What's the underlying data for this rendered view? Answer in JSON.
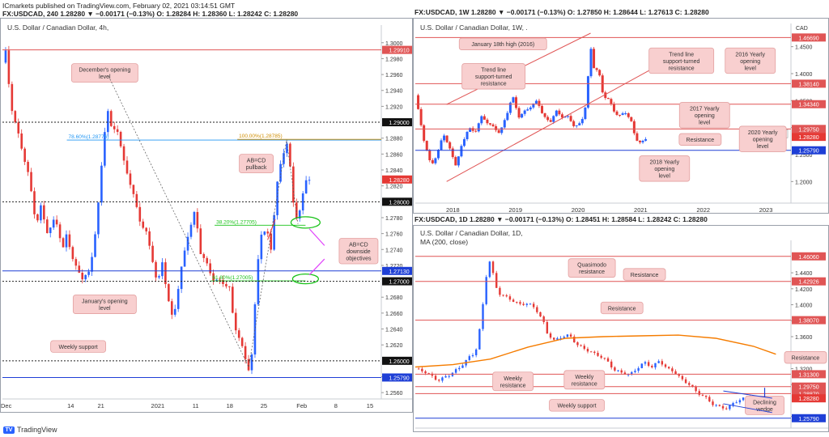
{
  "top": {
    "line1": "ICmarkets published on TradingView.com, February 02, 2021 03:14:51 GMT",
    "line2": "FX:USDCAD, 240  1.28280  ▼  −0.00171 (−0.13%)  O: 1.28284  H: 1.28360  L: 1.28242  C: 1.28280"
  },
  "footer": {
    "logo": "TradingView"
  },
  "colors": {
    "up": "#2962ff",
    "down": "#e53935",
    "resistance": "#e05555",
    "support": "#1e3fd6",
    "label_bg": "#f8cfcf",
    "label_border": "#e3a0a0",
    "ma": "#f57c00",
    "fib_blue": "#2196f3",
    "fib_orange": "#d18e00",
    "green": "#19c219",
    "magenta": "#e040fb"
  },
  "chart_data": [
    {
      "id": "h4",
      "type": "candlestick",
      "header": "FX:USDCAD, 240  1.28280 ▼ −0.00171 (−0.13%)  O: 1.28284  H: 1.28360  L: 1.28242  C: 1.28280",
      "title": "U.S. Dollar / Canadian Dollar, 4h,",
      "ylim": [
        1.2552,
        1.3012
      ],
      "xlim": [
        0,
        100
      ],
      "y_ticks": [
        "1.3000",
        "1.2980",
        "1.2960",
        "1.2940",
        "1.2920",
        "1.2880",
        "1.2860",
        "1.2840",
        "1.2820",
        "1.2780",
        "1.2760",
        "1.2740",
        "1.2720",
        "1.2680",
        "1.2660",
        "1.2640",
        "1.2620",
        "1.2580",
        "1.2560"
      ],
      "x_ticks": [
        {
          "x": 1,
          "label": "Dec"
        },
        {
          "x": 18,
          "label": "14"
        },
        {
          "x": 26,
          "label": "21"
        },
        {
          "x": 41,
          "label": "2021"
        },
        {
          "x": 51,
          "label": "11"
        },
        {
          "x": 60,
          "label": "18"
        },
        {
          "x": 69,
          "label": "25"
        },
        {
          "x": 79,
          "label": "Feb"
        },
        {
          "x": 88,
          "label": "8"
        },
        {
          "x": 97,
          "label": "15"
        }
      ],
      "price_path": [
        [
          0,
          1.2975
        ],
        [
          1,
          1.299
        ],
        [
          2,
          1.293
        ],
        [
          3,
          1.2905
        ],
        [
          5,
          1.287
        ],
        [
          7,
          1.283
        ],
        [
          9,
          1.277
        ],
        [
          10,
          1.2795
        ],
        [
          12,
          1.276
        ],
        [
          14,
          1.278
        ],
        [
          16,
          1.274
        ],
        [
          17,
          1.276
        ],
        [
          19,
          1.272
        ],
        [
          21,
          1.2705
        ],
        [
          23,
          1.271
        ],
        [
          25,
          1.278
        ],
        [
          27,
          1.289
        ],
        [
          28,
          1.292
        ],
        [
          29,
          1.288
        ],
        [
          30,
          1.29
        ],
        [
          32,
          1.285
        ],
        [
          34,
          1.282
        ],
        [
          36,
          1.278
        ],
        [
          38,
          1.276
        ],
        [
          40,
          1.272
        ],
        [
          41,
          1.269
        ],
        [
          42,
          1.273
        ],
        [
          44,
          1.267
        ],
        [
          45,
          1.265
        ],
        [
          47,
          1.271
        ],
        [
          49,
          1.276
        ],
        [
          51,
          1.279
        ],
        [
          52,
          1.274
        ],
        [
          54,
          1.272
        ],
        [
          56,
          1.27
        ],
        [
          58,
          1.27
        ],
        [
          60,
          1.269
        ],
        [
          61,
          1.265
        ],
        [
          63,
          1.262
        ],
        [
          65,
          1.259
        ],
        [
          66,
          1.261
        ],
        [
          67,
          1.27
        ],
        [
          68,
          1.276
        ],
        [
          70,
          1.276
        ],
        [
          71,
          1.274
        ],
        [
          72,
          1.28
        ],
        [
          73,
          1.284
        ],
        [
          74,
          1.286
        ],
        [
          75,
          1.2875
        ],
        [
          76,
          1.284
        ],
        [
          77,
          1.279
        ],
        [
          78,
          1.2775
        ],
        [
          79,
          1.28
        ],
        [
          80,
          1.283
        ],
        [
          81,
          1.2828
        ]
      ],
      "levels": [
        {
          "value": 1.2991,
          "label": "1.29910",
          "kind": "resistance"
        },
        {
          "value": 1.29,
          "label": "1.29000",
          "kind": "dotted"
        },
        {
          "value": 1.2828,
          "label": "1.28280",
          "kind": "price"
        },
        {
          "value": 1.28,
          "label": "1.28000",
          "kind": "dotted"
        },
        {
          "value": 1.2713,
          "label": "1.27130",
          "kind": "support"
        },
        {
          "value": 1.27,
          "label": "1.27000",
          "kind": "dotted"
        },
        {
          "value": 1.26,
          "label": "1.26000",
          "kind": "dotted"
        },
        {
          "value": 1.2579,
          "label": "1.25790",
          "kind": "support"
        }
      ],
      "fib": [
        {
          "value": 1.28776,
          "label": "78.60%(1.28776)",
          "x_from": 17,
          "x_to": 100,
          "color": "fib_blue",
          "label_x": 17
        },
        {
          "value": 1.28785,
          "label": "100.00%(1.28785)",
          "x_from": 62,
          "x_to": 100,
          "color": "fib_orange",
          "label_x": 62
        },
        {
          "value": 1.27705,
          "label": "38.20%(1.27705)",
          "x_from": 56,
          "x_to": 80,
          "color": "green",
          "label_x": 56
        },
        {
          "value": 1.27005,
          "label": "61.80%(1.27005)",
          "x_from": 55,
          "x_to": 80,
          "color": "green",
          "label_x": 55
        }
      ],
      "annotations": [
        {
          "text": [
            "December's opening",
            "level"
          ],
          "x": 27,
          "y": 1.2962,
          "w": 82
        },
        {
          "text": [
            "AB=CD",
            "pullback"
          ],
          "x": 67,
          "y": 1.2848,
          "w": 42
        },
        {
          "text": [
            "AB=CD",
            "downside",
            "objectives"
          ],
          "x": 94,
          "y": 1.2738,
          "w": 48
        },
        {
          "text": [
            "January's opening",
            "level"
          ],
          "x": 27,
          "y": 1.2671,
          "w": 78
        },
        {
          "text": [
            "Weekly support"
          ],
          "x": 20,
          "y": 1.2618,
          "w": 68
        }
      ]
    },
    {
      "id": "weekly",
      "type": "candlestick",
      "header": "FX:USDCAD, 1W  1.28280 ▼ −0.00171 (−0.13%)  O: 1.27850  H: 1.28644  L: 1.27613  C: 1.28280",
      "title": "U.S. Dollar / Canadian Dollar, 1W, .",
      "ylim": [
        1.16,
        1.478
      ],
      "xlim": [
        2017.4,
        2023.4
      ],
      "currency": "CAD",
      "y_ticks": [
        "1.4500",
        "1.4000",
        "1.3500",
        "1.3000",
        "1.2500",
        "1.2000"
      ],
      "x_ticks": [
        {
          "x": 2018,
          "label": "2018"
        },
        {
          "x": 2019,
          "label": "2019"
        },
        {
          "x": 2020,
          "label": "2020"
        },
        {
          "x": 2021,
          "label": "2021"
        },
        {
          "x": 2022,
          "label": "2022"
        },
        {
          "x": 2023,
          "label": "2023"
        }
      ],
      "price_path": [
        [
          2017.4,
          1.36
        ],
        [
          2017.45,
          1.33
        ],
        [
          2017.55,
          1.27
        ],
        [
          2017.65,
          1.23
        ],
        [
          2017.75,
          1.25
        ],
        [
          2017.85,
          1.29
        ],
        [
          2017.95,
          1.26
        ],
        [
          2018.05,
          1.23
        ],
        [
          2018.15,
          1.27
        ],
        [
          2018.25,
          1.3
        ],
        [
          2018.35,
          1.29
        ],
        [
          2018.45,
          1.32
        ],
        [
          2018.55,
          1.31
        ],
        [
          2018.65,
          1.3
        ],
        [
          2018.75,
          1.29
        ],
        [
          2018.85,
          1.32
        ],
        [
          2018.95,
          1.36
        ],
        [
          2019.05,
          1.32
        ],
        [
          2019.15,
          1.33
        ],
        [
          2019.25,
          1.34
        ],
        [
          2019.35,
          1.35
        ],
        [
          2019.45,
          1.32
        ],
        [
          2019.55,
          1.31
        ],
        [
          2019.65,
          1.33
        ],
        [
          2019.75,
          1.32
        ],
        [
          2019.85,
          1.32
        ],
        [
          2019.95,
          1.3
        ],
        [
          2020.05,
          1.31
        ],
        [
          2020.12,
          1.34
        ],
        [
          2020.18,
          1.42
        ],
        [
          2020.22,
          1.46
        ],
        [
          2020.26,
          1.4
        ],
        [
          2020.32,
          1.41
        ],
        [
          2020.4,
          1.36
        ],
        [
          2020.5,
          1.35
        ],
        [
          2020.58,
          1.33
        ],
        [
          2020.65,
          1.32
        ],
        [
          2020.75,
          1.33
        ],
        [
          2020.85,
          1.31
        ],
        [
          2020.92,
          1.28
        ],
        [
          2021.0,
          1.27
        ],
        [
          2021.08,
          1.28
        ]
      ],
      "levels": [
        {
          "value": 1.467,
          "label": "1.46690",
          "kind": "resistance"
        },
        {
          "value": 1.3814,
          "label": "1.38140",
          "kind": "resistance"
        },
        {
          "value": 1.3434,
          "label": "1.34340",
          "kind": "resistance"
        },
        {
          "value": 1.2975,
          "label": "1.29750",
          "kind": "resistance"
        },
        {
          "value": 1.2887,
          "label": "1.2887",
          "kind": "tag"
        },
        {
          "value": 1.2828,
          "label": "1.28280",
          "kind": "price"
        },
        {
          "value": 1.2579,
          "label": "1.25790",
          "kind": "support"
        }
      ],
      "trendlines": [
        {
          "from": [
            2017.9,
            1.343
          ],
          "to": [
            2020.2,
            1.475
          ]
        },
        {
          "from": [
            2017.9,
            1.2
          ],
          "to": [
            2021.2,
            1.41
          ]
        }
      ],
      "annotations": [
        {
          "text": [
            "January 18th high (2016)"
          ],
          "x": 2018.8,
          "y": 1.455,
          "w": 108
        },
        {
          "text": [
            "Trend line",
            "support-turned",
            "resistance"
          ],
          "x": 2018.65,
          "y": 1.395,
          "w": 78
        },
        {
          "text": [
            "Trend line",
            "support-turned",
            "resistance"
          ],
          "x": 2021.65,
          "y": 1.424,
          "w": 80
        },
        {
          "text": [
            "2016 Yearly",
            "opening",
            "level"
          ],
          "x": 2022.75,
          "y": 1.424,
          "w": 62
        },
        {
          "text": [
            "2017 Yearly",
            "opening",
            "level"
          ],
          "x": 2022.02,
          "y": 1.323,
          "w": 62
        },
        {
          "text": [
            "Resistance"
          ],
          "x": 2021.95,
          "y": 1.278,
          "w": 52
        },
        {
          "text": [
            "2020 Yearly",
            "opening",
            "level"
          ],
          "x": 2022.95,
          "y": 1.279,
          "w": 58
        },
        {
          "text": [
            "2018 Yearly",
            "opening",
            "level"
          ],
          "x": 2021.38,
          "y": 1.224,
          "w": 62
        }
      ]
    },
    {
      "id": "daily",
      "type": "candlestick",
      "header": "FX:USDCAD, 1D  1.28280 ▼ −0.00171 (−0.13%)  O: 1.28451  H: 1.28584  L: 1.28242  C: 1.28280",
      "title": "U.S. Dollar / Canadian Dollar, 1D,",
      "ma_label": "MA (200, close)",
      "ylim": [
        1.2455,
        1.4705
      ],
      "xlim": [
        0,
        100
      ],
      "y_ticks": [
        "1.4400",
        "1.4200",
        "1.4000",
        "1.3800",
        "1.3600",
        "1.3400",
        "1.3200",
        "1.3000",
        "1.2600"
      ],
      "x_ticks": [
        {
          "x": 6,
          "label": "2020"
        },
        {
          "x": 19,
          "label": "Mar"
        },
        {
          "x": 32,
          "label": "May"
        },
        {
          "x": 45,
          "label": "Jul"
        },
        {
          "x": 58,
          "label": "Sep"
        },
        {
          "x": 71,
          "label": "Nov"
        },
        {
          "x": 84,
          "label": "2021"
        },
        {
          "x": 96,
          "label": "Mar"
        }
      ],
      "price_path": [
        [
          0,
          1.32
        ],
        [
          3,
          1.315
        ],
        [
          6,
          1.305
        ],
        [
          9,
          1.312
        ],
        [
          12,
          1.322
        ],
        [
          14,
          1.333
        ],
        [
          16,
          1.34
        ],
        [
          17,
          1.365
        ],
        [
          18,
          1.4
        ],
        [
          19,
          1.44
        ],
        [
          20,
          1.458
        ],
        [
          21,
          1.43
        ],
        [
          22,
          1.415
        ],
        [
          24,
          1.41
        ],
        [
          26,
          1.405
        ],
        [
          28,
          1.4
        ],
        [
          30,
          1.402
        ],
        [
          32,
          1.395
        ],
        [
          34,
          1.38
        ],
        [
          35,
          1.365
        ],
        [
          37,
          1.355
        ],
        [
          39,
          1.36
        ],
        [
          41,
          1.362
        ],
        [
          43,
          1.35
        ],
        [
          45,
          1.345
        ],
        [
          47,
          1.34
        ],
        [
          49,
          1.336
        ],
        [
          51,
          1.33
        ],
        [
          53,
          1.318
        ],
        [
          55,
          1.315
        ],
        [
          57,
          1.312
        ],
        [
          59,
          1.32
        ],
        [
          61,
          1.328
        ],
        [
          63,
          1.322
        ],
        [
          65,
          1.33
        ],
        [
          67,
          1.32
        ],
        [
          69,
          1.316
        ],
        [
          71,
          1.306
        ],
        [
          73,
          1.3
        ],
        [
          75,
          1.29
        ],
        [
          77,
          1.285
        ],
        [
          79,
          1.276
        ],
        [
          81,
          1.272
        ],
        [
          83,
          1.27
        ],
        [
          85,
          1.278
        ],
        [
          87,
          1.282
        ],
        [
          89,
          1.285
        ],
        [
          90,
          1.283
        ]
      ],
      "ma": [
        [
          0,
          1.322
        ],
        [
          10,
          1.325
        ],
        [
          20,
          1.332
        ],
        [
          30,
          1.347
        ],
        [
          40,
          1.358
        ],
        [
          50,
          1.36
        ],
        [
          60,
          1.361
        ],
        [
          70,
          1.362
        ],
        [
          80,
          1.358
        ],
        [
          90,
          1.348
        ],
        [
          96,
          1.338
        ]
      ],
      "levels": [
        {
          "value": 1.4606,
          "label": "1.46060",
          "kind": "resistance"
        },
        {
          "value": 1.42926,
          "label": "1.42926",
          "kind": "resistance"
        },
        {
          "value": 1.3807,
          "label": "1.38070",
          "kind": "resistance"
        },
        {
          "value": 1.313,
          "label": "1.31300",
          "kind": "resistance"
        },
        {
          "value": 1.2975,
          "label": "1.29750",
          "kind": "resistance"
        },
        {
          "value": 1.2887,
          "label": "1.28870",
          "kind": "resistance"
        },
        {
          "value": 1.2828,
          "label": "1.28280",
          "kind": "price"
        },
        {
          "value": 1.2579,
          "label": "1.25790",
          "kind": "support"
        }
      ],
      "annotations": [
        {
          "text": [
            "Quasimodo",
            "resistance"
          ],
          "x": 47,
          "y": 1.446,
          "w": 58
        },
        {
          "text": [
            "Resistance"
          ],
          "x": 61,
          "y": 1.438,
          "w": 52
        },
        {
          "text": [
            "Resistance"
          ],
          "x": 55,
          "y": 1.396,
          "w": 52
        },
        {
          "text": [
            "Weekly",
            "resistance"
          ],
          "x": 26,
          "y": 1.304,
          "w": 50
        },
        {
          "text": [
            "Weekly",
            "resistance"
          ],
          "x": 45,
          "y": 1.306,
          "w": 50
        },
        {
          "text": [
            "Weekly support"
          ],
          "x": 43,
          "y": 1.274,
          "w": 68
        },
        {
          "text": [
            "Resistance"
          ],
          "x": 117,
          "y": 1.334,
          "w": 52
        },
        {
          "text": [
            "Declining",
            "wedge"
          ],
          "x": 93,
          "y": 1.274,
          "w": 48
        }
      ]
    }
  ]
}
